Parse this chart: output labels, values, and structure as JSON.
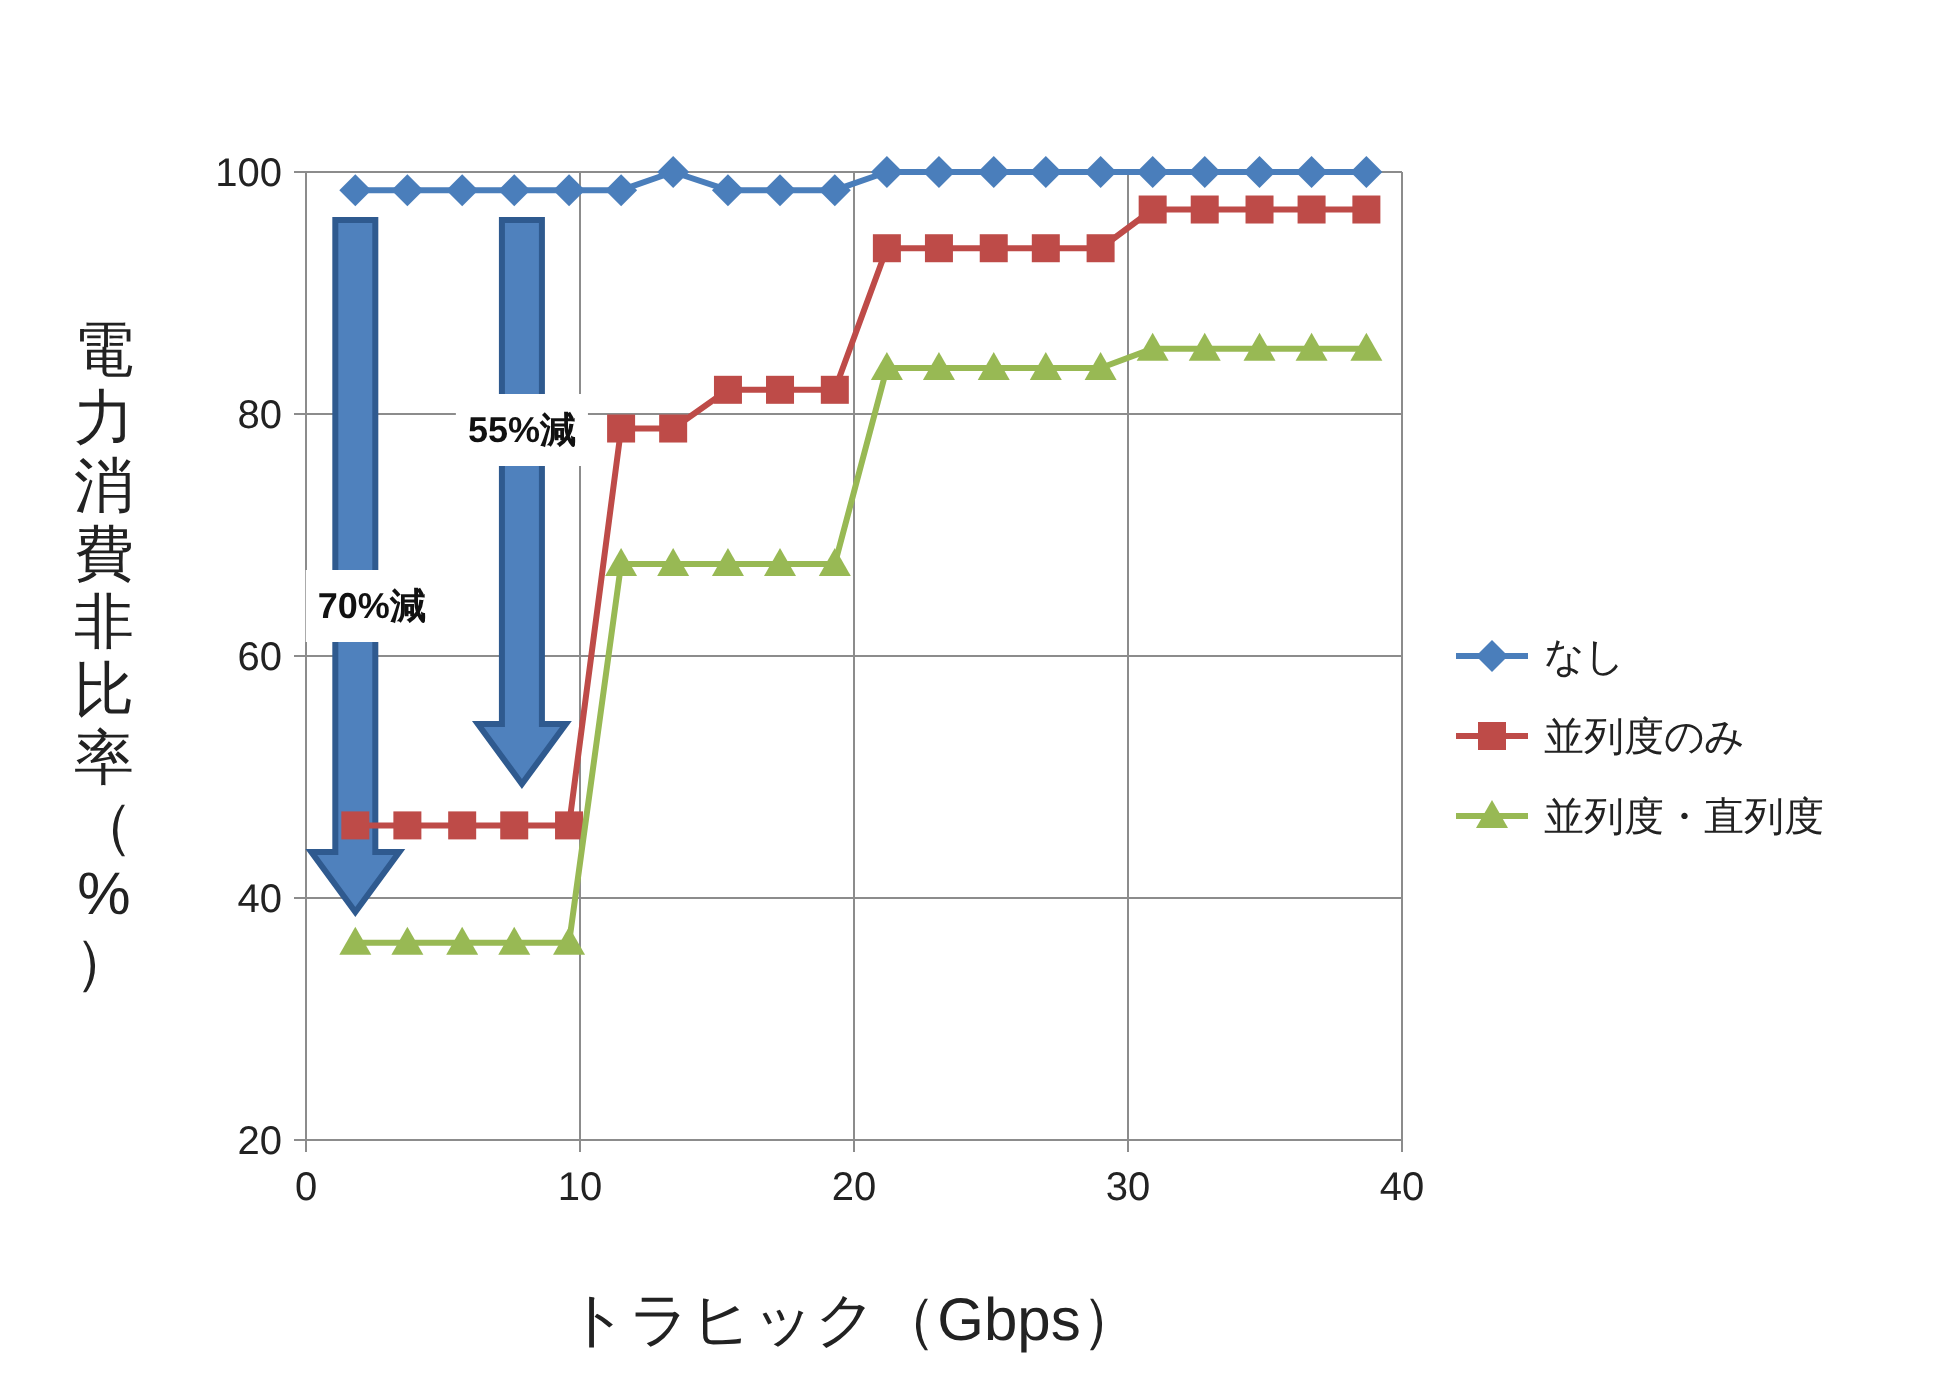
{
  "chart_data": {
    "type": "line",
    "xlabel": "トラヒック（Gbps）",
    "ylabel": "電力消費非比率（%）",
    "x": [
      1.8,
      3.7,
      5.7,
      7.6,
      9.6,
      11.5,
      13.4,
      15.4,
      17.3,
      19.3,
      21.2,
      23.1,
      25.1,
      27.0,
      29.0,
      30.9,
      32.8,
      34.8,
      36.7,
      38.7
    ],
    "xlim": [
      0,
      40
    ],
    "xticks": [
      0,
      10,
      20,
      30,
      40
    ],
    "ylim": [
      20,
      100
    ],
    "yticks": [
      20,
      40,
      60,
      80,
      100
    ],
    "grid": true,
    "legend": "right",
    "series": [
      {
        "name": "なし",
        "color": "#4a7ebb",
        "marker": "diamond",
        "values": [
          98.5,
          98.5,
          98.5,
          98.5,
          98.5,
          98.5,
          100,
          98.5,
          98.5,
          98.5,
          100,
          100,
          100,
          100,
          100,
          100,
          100,
          100,
          100,
          100
        ]
      },
      {
        "name": "並列度のみ",
        "color": "#be4b48",
        "marker": "square",
        "values": [
          46,
          46,
          46,
          46,
          46,
          78.8,
          78.8,
          82,
          82,
          82,
          93.7,
          93.7,
          93.7,
          93.7,
          93.7,
          96.9,
          96.9,
          96.9,
          96.9,
          96.9
        ]
      },
      {
        "name": "並列度・直列度",
        "color": "#98b954",
        "marker": "triangle",
        "values": [
          36.3,
          36.3,
          36.3,
          36.3,
          36.3,
          67.6,
          67.6,
          67.6,
          67.6,
          67.6,
          83.8,
          83.8,
          83.8,
          83.8,
          83.8,
          85.4,
          85.4,
          85.4,
          85.4,
          85.4
        ]
      }
    ],
    "annotations": [
      "55%減",
      "70%減"
    ]
  }
}
